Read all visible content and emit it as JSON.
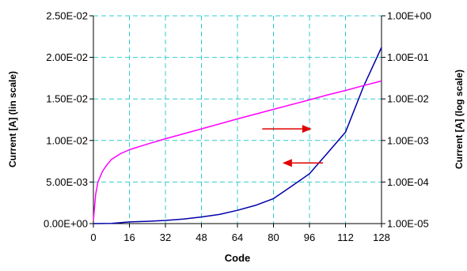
{
  "chart_data": {
    "type": "line",
    "xlabel": "Code",
    "ylabel_left": "Current [A] (lin scale)",
    "ylabel_right": "Current [A] (log scale)",
    "xlim": [
      0,
      128
    ],
    "x_ticks": [
      0,
      16,
      32,
      48,
      64,
      80,
      96,
      112,
      128
    ],
    "ylim_left": [
      0,
      0.025
    ],
    "y_ticks_left": [
      "0.00E+00",
      "5.00E-03",
      "1.00E-02",
      "1.50E-02",
      "2.00E-02",
      "2.50E-02"
    ],
    "ylim_right": [
      1e-05,
      1
    ],
    "right_axis_scale": "log",
    "y_ticks_right": [
      "1.00E-05",
      "1.00E-04",
      "1.00E-03",
      "1.00E-02",
      "1.00E-01",
      "1.00E+00"
    ],
    "grid": true,
    "series": [
      {
        "axis": "left",
        "color": "#0000aa",
        "x": [
          0,
          8,
          16,
          24,
          32,
          40,
          48,
          56,
          64,
          72,
          80,
          88,
          96,
          104,
          112,
          120,
          128
        ],
        "y": [
          0,
          2e-05,
          0.0002,
          0.00028,
          0.00038,
          0.00055,
          0.0008,
          0.0011,
          0.0016,
          0.0022,
          0.003,
          0.0045,
          0.006,
          0.0085,
          0.011,
          0.0165,
          0.0212
        ]
      },
      {
        "axis": "right",
        "color": "#ff00ff",
        "x": [
          0,
          1,
          2,
          4,
          6,
          8,
          12,
          16,
          24,
          32,
          48,
          64,
          80,
          96,
          104,
          112,
          120,
          128
        ],
        "y": [
          1.2e-05,
          5e-05,
          0.0001,
          0.00018,
          0.00026,
          0.00035,
          0.00048,
          0.0006,
          0.00082,
          0.0011,
          0.0019,
          0.0033,
          0.0056,
          0.0095,
          0.0125,
          0.016,
          0.021,
          0.027
        ]
      }
    ],
    "annotations": [
      {
        "type": "arrow",
        "direction": "right",
        "color": "#e00000",
        "from": [
          75,
          0.0114
        ],
        "to": [
          97,
          0.0114
        ]
      },
      {
        "type": "arrow",
        "direction": "left",
        "color": "#e00000",
        "from": [
          102,
          0.0073
        ],
        "to": [
          84,
          0.0073
        ]
      }
    ]
  }
}
